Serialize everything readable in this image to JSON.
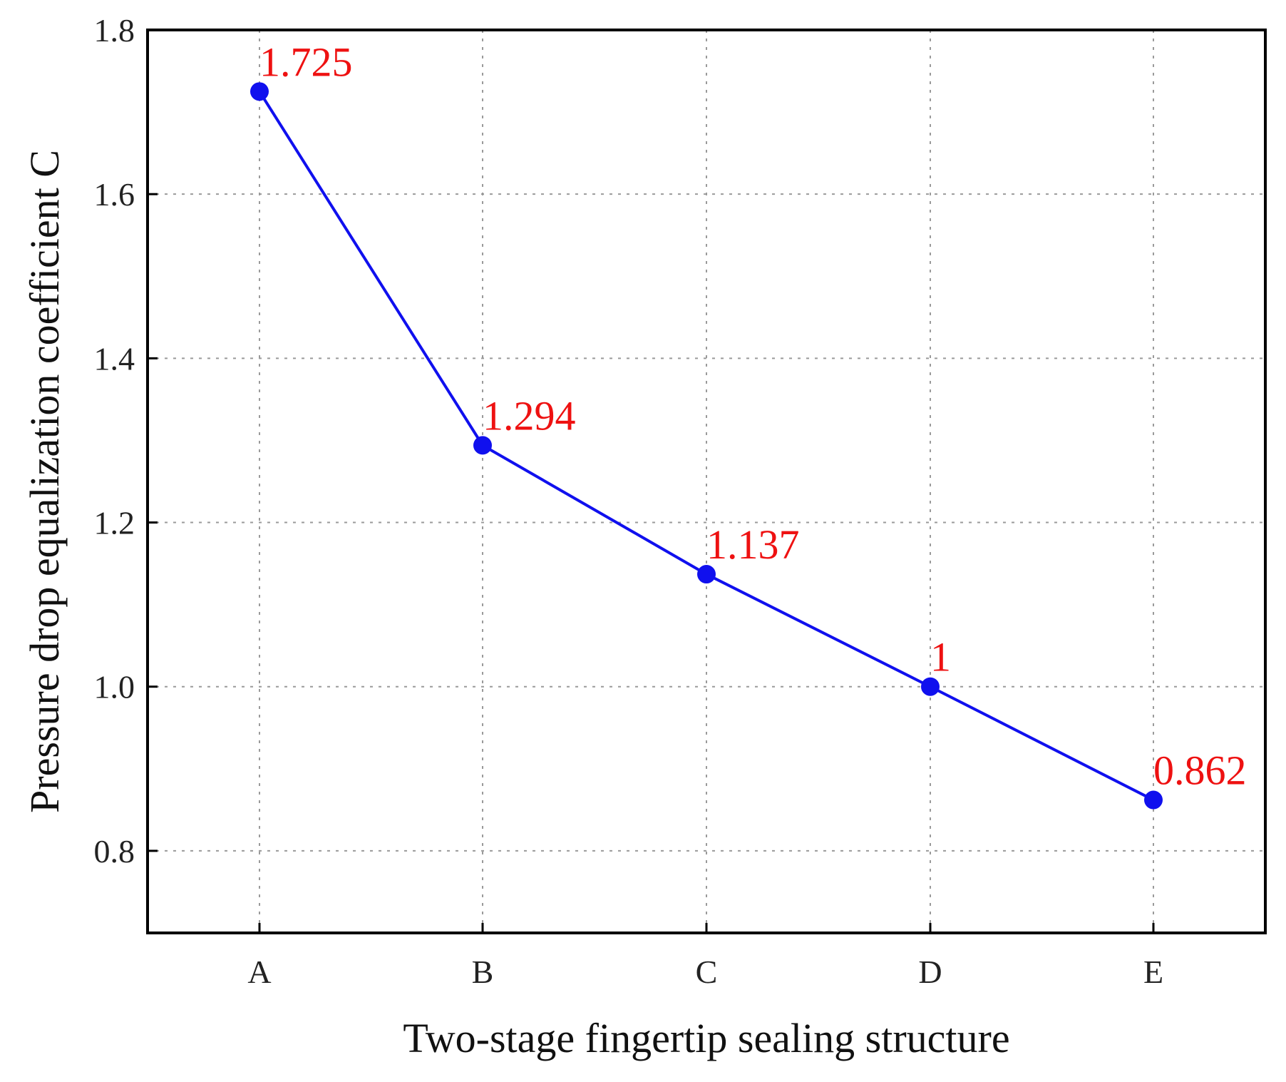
{
  "chart_data": {
    "type": "line",
    "title": "",
    "xlabel": "Two-stage fingertip sealing structure",
    "ylabel": "Pressure drop equalization coefficient C",
    "categories": [
      "A",
      "B",
      "C",
      "D",
      "E"
    ],
    "series": [
      {
        "values": [
          1.725,
          1.294,
          1.137,
          1.0,
          0.862
        ],
        "data_labels": [
          "1.725",
          "1.294",
          "1.137",
          "1",
          "0.862"
        ],
        "color": "#1010ee",
        "marker": "circle"
      }
    ],
    "ylim": [
      0.7,
      1.8
    ],
    "yticks": [
      0.8,
      1.0,
      1.2,
      1.4,
      1.6,
      1.8
    ],
    "ytick_labels": [
      "0.8",
      "1.0",
      "1.2",
      "1.4",
      "1.6",
      "1.8"
    ],
    "grid": true,
    "grid_style": "dotted",
    "label_color": "#ee1111",
    "legend": "none"
  }
}
